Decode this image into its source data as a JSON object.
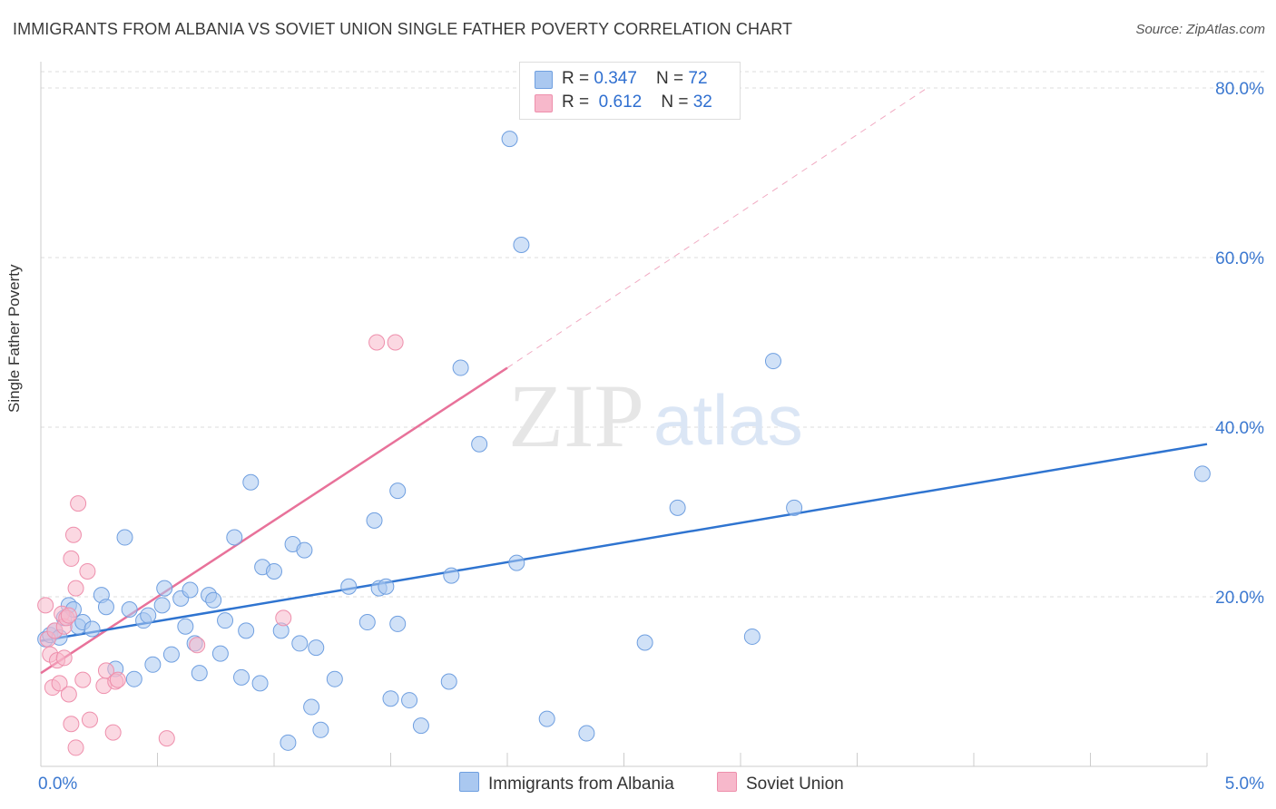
{
  "title": "IMMIGRANTS FROM ALBANIA VS SOVIET UNION SINGLE FATHER POVERTY CORRELATION CHART",
  "source": "Source: ZipAtlas.com",
  "watermark": {
    "zip": "ZIP",
    "atlas": "atlas"
  },
  "legend": {
    "series1": {
      "r_label": "R = ",
      "r_value": "0.347",
      "n_label": "N = ",
      "n_value": "72"
    },
    "series2": {
      "r_label": "R = ",
      "r_value": "0.612",
      "n_label": "N = ",
      "n_value": "32"
    }
  },
  "colors": {
    "blue_fill": "#aac8f0",
    "blue_stroke": "#6f9fe0",
    "blue_line": "#2f74d0",
    "pink_fill": "#f7b8cb",
    "pink_stroke": "#ee8fac",
    "pink_line": "#e8729a",
    "axis_label": "#3b78d0"
  },
  "chart_data": {
    "type": "scatter",
    "title": "IMMIGRANTS FROM ALBANIA VS SOVIET UNION SINGLE FATHER POVERTY CORRELATION CHART",
    "xlabel": "",
    "ylabel": "Single Father Poverty",
    "xlim": [
      0,
      5
    ],
    "ylim": [
      0,
      80
    ],
    "x_tick_labels": [
      "0.0%",
      "5.0%"
    ],
    "y_ticks": [
      20,
      40,
      60,
      80
    ],
    "y_tick_labels": [
      "20.0%",
      "40.0%",
      "60.0%",
      "80.0%"
    ],
    "grid": true,
    "series": [
      {
        "name": "Immigrants from Albania",
        "color": "#aac8f0",
        "trend": {
          "x0": 0.0,
          "y0": 14.8,
          "x1": 5.0,
          "y1": 38.0
        },
        "points": [
          [
            0.02,
            15.0
          ],
          [
            0.04,
            15.5
          ],
          [
            0.06,
            16.0
          ],
          [
            0.08,
            15.2
          ],
          [
            0.1,
            17.5
          ],
          [
            0.12,
            19.0
          ],
          [
            0.14,
            18.5
          ],
          [
            0.16,
            16.5
          ],
          [
            0.18,
            17.0
          ],
          [
            0.22,
            16.2
          ],
          [
            0.26,
            20.2
          ],
          [
            0.28,
            18.8
          ],
          [
            0.32,
            11.5
          ],
          [
            0.36,
            27.0
          ],
          [
            0.38,
            18.5
          ],
          [
            0.4,
            10.3
          ],
          [
            0.44,
            17.2
          ],
          [
            0.46,
            17.8
          ],
          [
            0.48,
            12.0
          ],
          [
            0.52,
            19.0
          ],
          [
            0.53,
            21.0
          ],
          [
            0.56,
            13.2
          ],
          [
            0.6,
            19.8
          ],
          [
            0.62,
            16.5
          ],
          [
            0.64,
            20.8
          ],
          [
            0.66,
            14.5
          ],
          [
            0.68,
            11.0
          ],
          [
            0.72,
            20.2
          ],
          [
            0.74,
            19.6
          ],
          [
            0.77,
            13.3
          ],
          [
            0.79,
            17.2
          ],
          [
            0.83,
            27.0
          ],
          [
            0.86,
            10.5
          ],
          [
            0.88,
            16.0
          ],
          [
            0.9,
            33.5
          ],
          [
            0.94,
            9.8
          ],
          [
            0.95,
            23.5
          ],
          [
            1.0,
            23.0
          ],
          [
            1.03,
            16.0
          ],
          [
            1.06,
            2.8
          ],
          [
            1.08,
            26.2
          ],
          [
            1.11,
            14.5
          ],
          [
            1.13,
            25.5
          ],
          [
            1.16,
            7.0
          ],
          [
            1.18,
            14.0
          ],
          [
            1.2,
            4.3
          ],
          [
            1.26,
            10.3
          ],
          [
            1.32,
            21.2
          ],
          [
            1.4,
            17.0
          ],
          [
            1.43,
            29.0
          ],
          [
            1.45,
            21.0
          ],
          [
            1.48,
            21.2
          ],
          [
            1.5,
            8.0
          ],
          [
            1.53,
            32.5
          ],
          [
            1.53,
            16.8
          ],
          [
            1.58,
            7.8
          ],
          [
            1.63,
            4.8
          ],
          [
            1.75,
            10.0
          ],
          [
            1.76,
            22.5
          ],
          [
            1.8,
            47.0
          ],
          [
            1.88,
            38.0
          ],
          [
            2.01,
            74.0
          ],
          [
            2.04,
            24.0
          ],
          [
            2.06,
            61.5
          ],
          [
            2.17,
            5.6
          ],
          [
            2.34,
            3.9
          ],
          [
            2.59,
            14.6
          ],
          [
            2.73,
            30.5
          ],
          [
            3.05,
            15.3
          ],
          [
            3.14,
            47.8
          ],
          [
            3.23,
            30.5
          ],
          [
            4.98,
            34.5
          ]
        ]
      },
      {
        "name": "Soviet Union",
        "color": "#f7b8cb",
        "trend": {
          "x0": 0.0,
          "y0": 11.0,
          "x1": 2.0,
          "y1": 47.0
        },
        "trend_ext": {
          "x0": 2.0,
          "y0": 47.0,
          "x1": 3.8,
          "y1": 80.0
        },
        "points": [
          [
            0.02,
            19.0
          ],
          [
            0.03,
            15.0
          ],
          [
            0.04,
            13.2
          ],
          [
            0.05,
            9.3
          ],
          [
            0.06,
            16.0
          ],
          [
            0.07,
            12.5
          ],
          [
            0.08,
            9.8
          ],
          [
            0.09,
            18.0
          ],
          [
            0.1,
            12.8
          ],
          [
            0.1,
            16.5
          ],
          [
            0.11,
            17.5
          ],
          [
            0.12,
            8.5
          ],
          [
            0.12,
            17.8
          ],
          [
            0.13,
            24.5
          ],
          [
            0.13,
            5.0
          ],
          [
            0.14,
            27.3
          ],
          [
            0.15,
            21.0
          ],
          [
            0.15,
            2.2
          ],
          [
            0.16,
            31.0
          ],
          [
            0.18,
            10.2
          ],
          [
            0.2,
            23.0
          ],
          [
            0.21,
            5.5
          ],
          [
            0.27,
            9.5
          ],
          [
            0.28,
            11.3
          ],
          [
            0.31,
            4.0
          ],
          [
            0.32,
            10.0
          ],
          [
            0.33,
            10.2
          ],
          [
            0.54,
            3.3
          ],
          [
            0.67,
            14.3
          ],
          [
            1.04,
            17.5
          ],
          [
            1.44,
            50.0
          ],
          [
            1.52,
            50.0
          ]
        ]
      }
    ]
  },
  "bottom_legend": [
    "Immigrants from Albania",
    "Soviet Union"
  ]
}
